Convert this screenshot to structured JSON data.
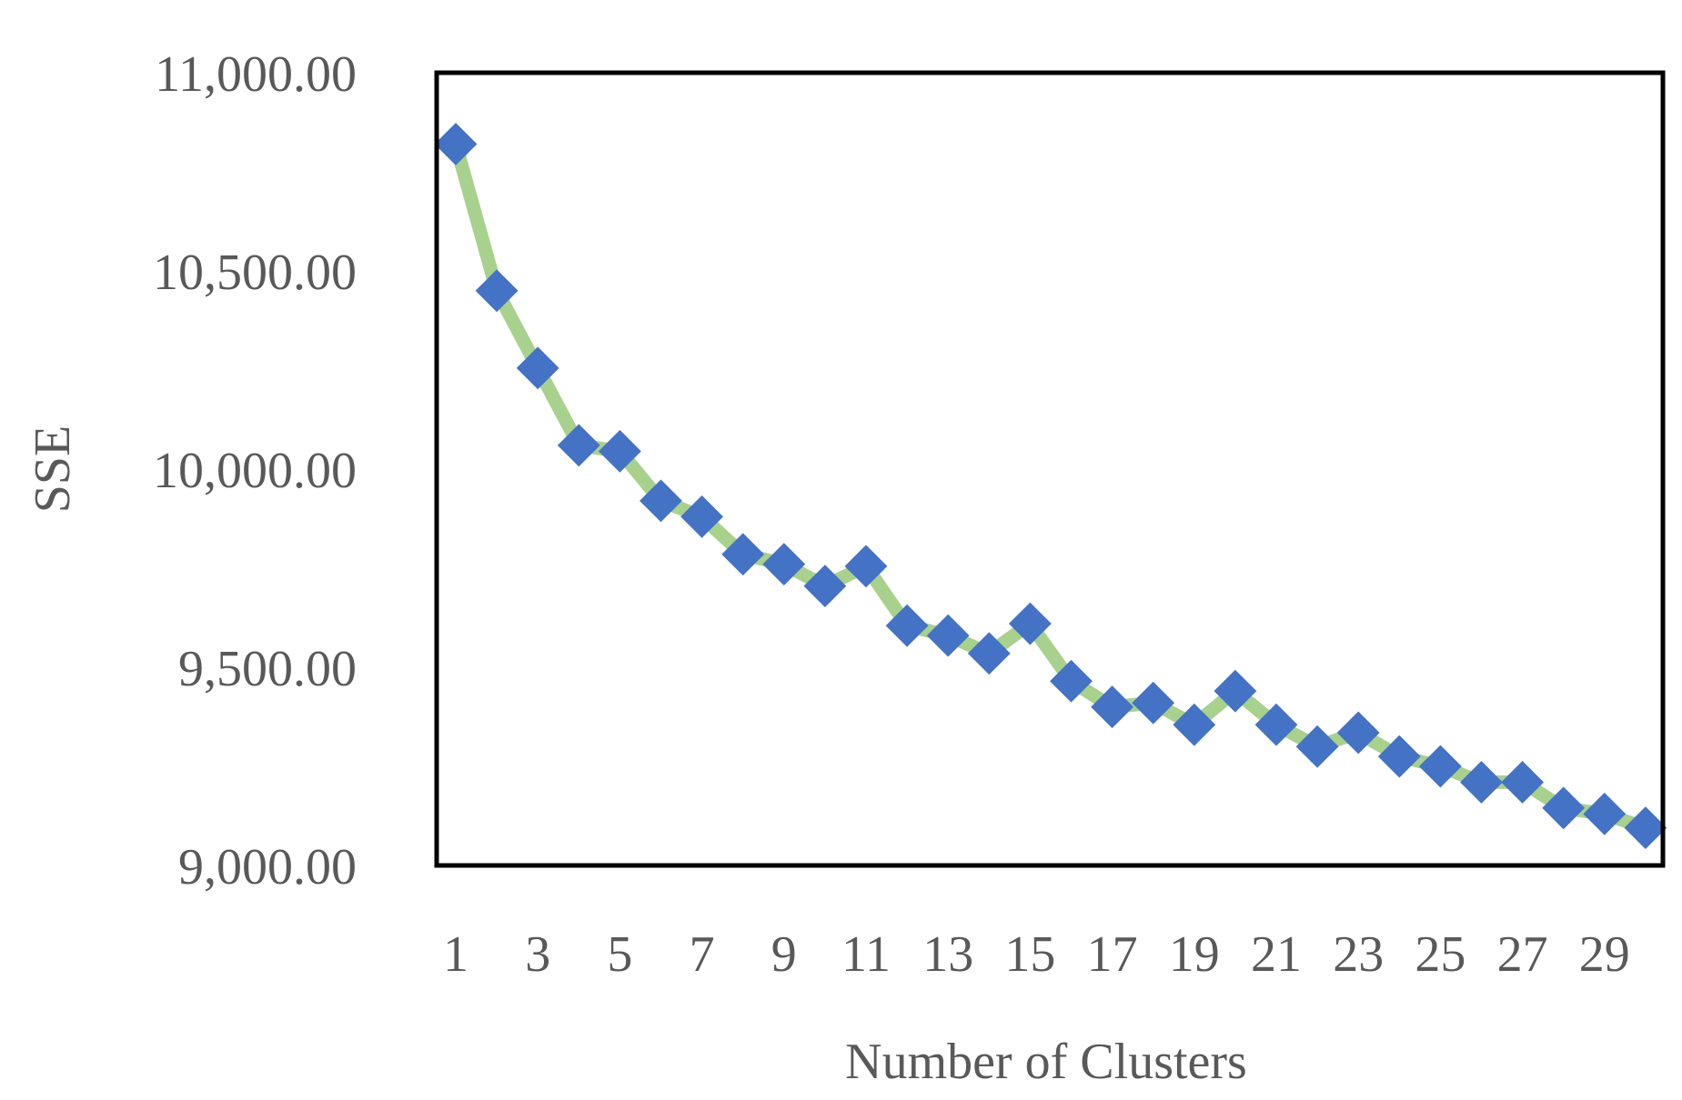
{
  "chart_data": {
    "type": "line",
    "title": "",
    "xlabel": "Number of Clusters",
    "ylabel": "SSE",
    "x": [
      1,
      2,
      3,
      4,
      5,
      6,
      7,
      8,
      9,
      10,
      11,
      12,
      13,
      14,
      15,
      16,
      17,
      18,
      19,
      20,
      21,
      22,
      23,
      24,
      25,
      26,
      27,
      28,
      29,
      30
    ],
    "xtick_labels": [
      "1",
      "3",
      "5",
      "7",
      "9",
      "11",
      "13",
      "15",
      "17",
      "19",
      "21",
      "23",
      "25",
      "27",
      "29"
    ],
    "ytick_labels": [
      "9,000.00",
      "9,500.00",
      "10,000.00",
      "10,500.00",
      "11,000.00"
    ],
    "ylim": [
      9000,
      11000
    ],
    "grid": false,
    "legend": "none",
    "series": [
      {
        "values": [
          10820,
          10450,
          10255,
          10060,
          10045,
          9920,
          9880,
          9785,
          9760,
          9705,
          9755,
          9605,
          9580,
          9535,
          9610,
          9465,
          9400,
          9410,
          9355,
          9440,
          9355,
          9300,
          9335,
          9275,
          9250,
          9210,
          9210,
          9145,
          9130,
          9095
        ],
        "line_color": "#a9d18e",
        "marker_color": "#4472c4"
      }
    ]
  }
}
